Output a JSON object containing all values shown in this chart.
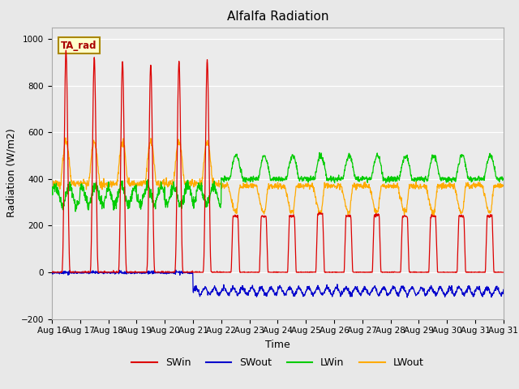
{
  "title": "Alfalfa Radiation",
  "ylabel": "Radiation (W/m2)",
  "xlabel": "Time",
  "annotation": "TA_rad",
  "ylim": [
    -200,
    1050
  ],
  "background_color": "#e8e8e8",
  "plot_bg_color": "#ebebeb",
  "series_colors": {
    "SWin": "#dd0000",
    "SWout": "#0000cc",
    "LWin": "#00cc00",
    "LWout": "#ffaa00"
  },
  "x_tick_labels": [
    "Aug 16",
    "Aug 17",
    "Aug 18",
    "Aug 19",
    "Aug 20",
    "Aug 21",
    "Aug 22",
    "Aug 23",
    "Aug 24",
    "Aug 25",
    "Aug 26",
    "Aug 27",
    "Aug 28",
    "Aug 29",
    "Aug 30",
    "Aug 31"
  ],
  "n_days": 16,
  "pts_per_day": 96
}
